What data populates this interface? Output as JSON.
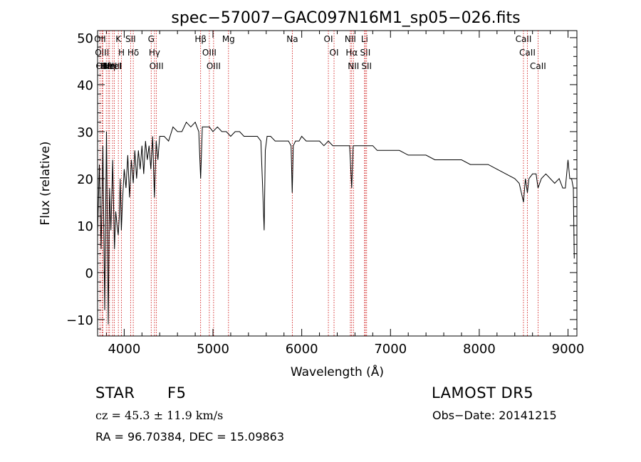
{
  "chart_data": {
    "type": "line",
    "title": "spec−57007−GAC097N16M1_sp05−026.fits",
    "xlabel": "Wavelength (Å)",
    "ylabel": "Flux (relative)",
    "xlim": [
      3700,
      9100
    ],
    "ylim": [
      -13.5,
      51.5
    ],
    "xticks": [
      4000,
      5000,
      6000,
      7000,
      8000,
      9000
    ],
    "yticks": [
      -10,
      0,
      10,
      20,
      30,
      40,
      50
    ],
    "grid": false,
    "series": [
      {
        "x": [
          3700,
          3720,
          3740,
          3760,
          3780,
          3800,
          3820,
          3835,
          3850,
          3870,
          3890,
          3905,
          3920,
          3933,
          3945,
          3955,
          3968,
          3980,
          4000,
          4020,
          4040,
          4060,
          4080,
          4102,
          4120,
          4140,
          4160,
          4180,
          4200,
          4220,
          4240,
          4260,
          4280,
          4300,
          4320,
          4340,
          4360,
          4380,
          4400,
          4450,
          4500,
          4550,
          4600,
          4650,
          4700,
          4750,
          4800,
          4840,
          4861,
          4880,
          4920,
          4960,
          5000,
          5050,
          5100,
          5150,
          5200,
          5250,
          5300,
          5350,
          5400,
          5450,
          5500,
          5540,
          5560,
          5577,
          5590,
          5610,
          5650,
          5700,
          5750,
          5800,
          5850,
          5880,
          5893,
          5905,
          5930,
          5970,
          6000,
          6050,
          6100,
          6150,
          6200,
          6250,
          6300,
          6350,
          6400,
          6450,
          6500,
          6540,
          6563,
          6580,
          6620,
          6660,
          6700,
          6750,
          6800,
          6850,
          6900,
          6950,
          7000,
          7100,
          7200,
          7300,
          7400,
          7500,
          7600,
          7700,
          7800,
          7900,
          8000,
          8100,
          8200,
          8300,
          8400,
          8450,
          8498,
          8520,
          8542,
          8560,
          8600,
          8640,
          8662,
          8700,
          8750,
          8800,
          8850,
          8900,
          8940,
          8970,
          9000,
          9020,
          9040,
          9060,
          9070
        ],
        "y": [
          8,
          23,
          5,
          27,
          -8,
          30,
          -11,
          18,
          9,
          24,
          5,
          13,
          10,
          8,
          12,
          20,
          9,
          15,
          22,
          18,
          25,
          16,
          24,
          19,
          26,
          20,
          26,
          22,
          27,
          21,
          28,
          24,
          27,
          22,
          29,
          16,
          28,
          24,
          29,
          29,
          28,
          31,
          30,
          30,
          32,
          31,
          32,
          30,
          20,
          31,
          31,
          31,
          30,
          31,
          30,
          30,
          29,
          30,
          30,
          29,
          29,
          29,
          29,
          28,
          18,
          9,
          26,
          29,
          29,
          28,
          28,
          28,
          28,
          27,
          17,
          27,
          28,
          28,
          29,
          28,
          28,
          28,
          28,
          27,
          28,
          27,
          27,
          27,
          27,
          27,
          18,
          27,
          27,
          27,
          27,
          27,
          27,
          26,
          26,
          26,
          26,
          26,
          25,
          25,
          25,
          24,
          24,
          24,
          24,
          23,
          23,
          23,
          22,
          21,
          20,
          19,
          15,
          20,
          17,
          20,
          21,
          21,
          18,
          20,
          21,
          20,
          19,
          20,
          18,
          18,
          24,
          20,
          20,
          18,
          3
        ]
      }
    ],
    "lines": [
      {
        "x": 3727,
        "label": "OII"
      },
      {
        "x": 3750,
        "label": "OIII"
      },
      {
        "x": 3760,
        "label": "OIII"
      },
      {
        "x": 3798,
        "label": "Hθ"
      },
      {
        "x": 3820,
        "label": "HeI"
      },
      {
        "x": 3835,
        "label": "Hη"
      },
      {
        "x": 3869,
        "label": "NeIII"
      },
      {
        "x": 3889,
        "label": "HeI"
      },
      {
        "x": 3934,
        "label": "K"
      },
      {
        "x": 3969,
        "label": "H"
      },
      {
        "x": 4072,
        "label": "SII"
      },
      {
        "x": 4102,
        "label": "Hδ"
      },
      {
        "x": 4304,
        "label": "G"
      },
      {
        "x": 4341,
        "label": "Hγ"
      },
      {
        "x": 4363,
        "label": "OIII"
      },
      {
        "x": 4861,
        "label": "Hβ"
      },
      {
        "x": 4959,
        "label": "OIII"
      },
      {
        "x": 5007,
        "label": "OIII"
      },
      {
        "x": 5175,
        "label": "Mg"
      },
      {
        "x": 5894,
        "label": "Na"
      },
      {
        "x": 6300,
        "label": "OI"
      },
      {
        "x": 6364,
        "label": "OI"
      },
      {
        "x": 6548,
        "label": "NII"
      },
      {
        "x": 6563,
        "label": "Hα"
      },
      {
        "x": 6583,
        "label": "NII"
      },
      {
        "x": 6708,
        "label": "Li"
      },
      {
        "x": 6716,
        "label": "SII"
      },
      {
        "x": 6731,
        "label": "SII"
      },
      {
        "x": 8498,
        "label": "CaII"
      },
      {
        "x": 8542,
        "label": "CaII"
      },
      {
        "x": 8662,
        "label": "CaII"
      }
    ]
  },
  "info": {
    "class": "STAR",
    "subclass": "F5",
    "survey": "LAMOST DR5",
    "cz": "cz = 45.3 ± 11.9 km/s",
    "obs_date": "Obs−Date: 20141215",
    "coords": "RA =  96.70384, DEC =  15.09863"
  },
  "colors": {
    "line_marker": "#cc0000",
    "spectrum": "#000000"
  }
}
